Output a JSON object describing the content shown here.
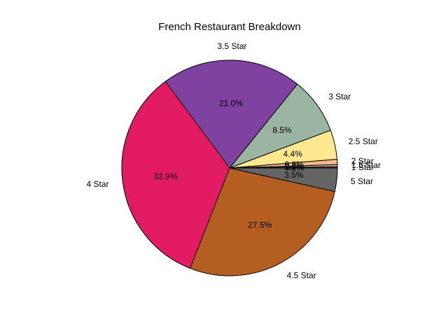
{
  "chart_data": {
    "type": "pie",
    "title": "French Restaurant Breakdown",
    "start_angle_deg": 0,
    "direction": "counterclockwise",
    "slices": [
      {
        "label": "1 Star",
        "value": 0.2,
        "pct": "0.2%",
        "color": "#a8322d"
      },
      {
        "label": "1.5 Star",
        "value": 0.3,
        "pct": "0.3%",
        "color": "#bdbdbd"
      },
      {
        "label": "2 Star",
        "value": 0.8,
        "pct": "0.8%",
        "color": "#f5b888"
      },
      {
        "label": "2.5 Star",
        "value": 4.4,
        "pct": "4.4%",
        "color": "#fde890"
      },
      {
        "label": "3 Star",
        "value": 8.5,
        "pct": "8.5%",
        "color": "#9bb5a3"
      },
      {
        "label": "3.5 Star",
        "value": 21.0,
        "pct": "21.0%",
        "color": "#7f42a0"
      },
      {
        "label": "4 Star",
        "value": 33.9,
        "pct": "33.9%",
        "color": "#e31a64"
      },
      {
        "label": "4.5 Star",
        "value": 27.5,
        "pct": "27.5%",
        "color": "#b45e22"
      },
      {
        "label": "5 Star",
        "value": 3.5,
        "pct": "3.5%",
        "color": "#656565"
      }
    ]
  }
}
